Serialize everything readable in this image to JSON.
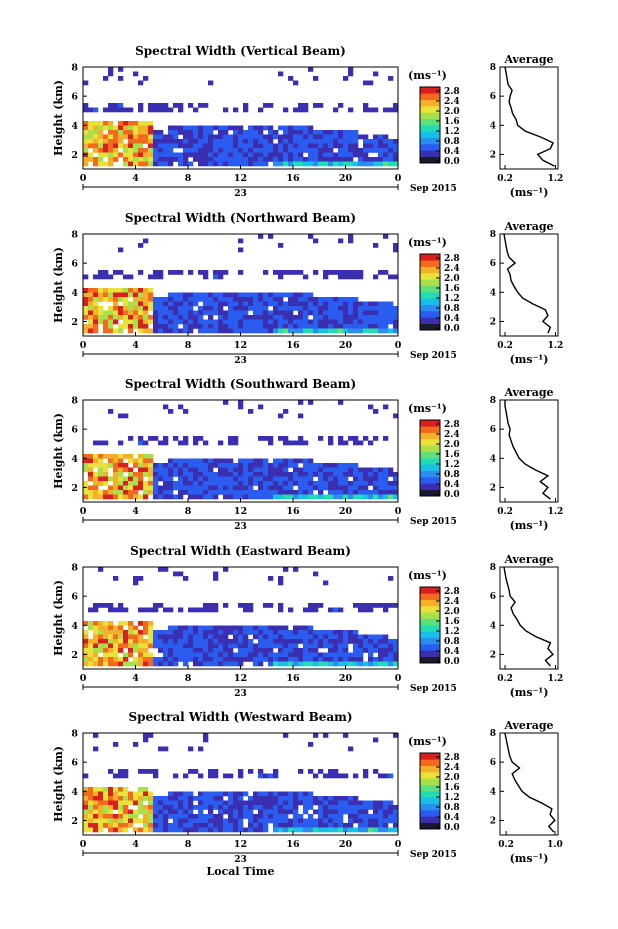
{
  "chart_data": [
    {
      "type": "heatmap",
      "title": "Spectral Width (Vertical Beam)",
      "ylabel": "Height (km)",
      "yticks": [
        "2",
        "4",
        "6",
        "8"
      ],
      "ylim": [
        1,
        8
      ],
      "xticks": [
        "0",
        "4",
        "8",
        "12",
        "16",
        "20",
        "0"
      ],
      "date_center": "23",
      "date_right": "Sep 2015",
      "colorbar": {
        "unit": "(ms⁻¹)",
        "ticks": [
          "2.8",
          "2.4",
          "2.0",
          "1.6",
          "1.2",
          "0.8",
          "0.4",
          "0.0"
        ]
      },
      "average_profile": {
        "title": "Average",
        "xlabel": "(ms⁻¹)",
        "xticks": [
          "0.2",
          "1.2"
        ],
        "xlim": [
          0.1,
          1.25
        ],
        "yticks": [
          "2",
          "4",
          "6",
          "8"
        ],
        "ylim": [
          1,
          8
        ],
        "height_km": [
          1.2,
          1.6,
          2.0,
          2.4,
          2.8,
          3.2,
          3.6,
          4.0,
          4.4,
          4.8,
          5.2,
          5.6,
          6.0,
          6.4,
          6.8,
          7.2,
          7.6,
          8.0
        ],
        "width": [
          1.18,
          0.95,
          0.85,
          1.1,
          1.15,
          0.9,
          0.6,
          0.45,
          0.42,
          0.35,
          0.32,
          0.28,
          0.3,
          0.34,
          0.26,
          0.24,
          0.22,
          0.2
        ]
      }
    },
    {
      "type": "heatmap",
      "title": "Spectral Width (Northward Beam)",
      "ylabel": "Height (km)",
      "yticks": [
        "2",
        "4",
        "6",
        "8"
      ],
      "ylim": [
        1,
        8
      ],
      "xticks": [
        "0",
        "4",
        "8",
        "12",
        "16",
        "20",
        "0"
      ],
      "date_center": "23",
      "date_right": "Sep 2015",
      "colorbar": {
        "unit": "(ms⁻¹)",
        "ticks": [
          "2.8",
          "2.4",
          "2.0",
          "1.6",
          "1.2",
          "0.8",
          "0.4",
          "0.0"
        ]
      },
      "average_profile": {
        "title": "Average",
        "xlabel": "(ms⁻¹)",
        "xticks": [
          "0.2",
          "1.2"
        ],
        "xlim": [
          0.1,
          1.25
        ],
        "yticks": [
          "2",
          "4",
          "6",
          "8"
        ],
        "ylim": [
          1,
          8
        ],
        "height_km": [
          1.2,
          1.6,
          2.0,
          2.4,
          2.8,
          3.2,
          3.6,
          4.0,
          4.4,
          4.8,
          5.2,
          5.6,
          6.0,
          6.4,
          6.8,
          7.2,
          7.6,
          8.0
        ],
        "width": [
          1.05,
          1.1,
          0.95,
          1.05,
          1.0,
          0.75,
          0.55,
          0.45,
          0.38,
          0.32,
          0.3,
          0.25,
          0.4,
          0.28,
          0.24,
          0.22,
          0.2,
          0.18
        ]
      }
    },
    {
      "type": "heatmap",
      "title": "Spectral Width (Southward Beam)",
      "ylabel": "Height (km)",
      "yticks": [
        "2",
        "4",
        "6",
        "8"
      ],
      "ylim": [
        1,
        8
      ],
      "xticks": [
        "0",
        "4",
        "8",
        "12",
        "16",
        "20",
        "0"
      ],
      "date_center": "23",
      "date_right": "Sep 2015",
      "colorbar": {
        "unit": "(ms⁻¹)",
        "ticks": [
          "2.8",
          "2.4",
          "2.0",
          "1.6",
          "1.2",
          "0.8",
          "0.4",
          "0.0"
        ]
      },
      "average_profile": {
        "title": "Average",
        "xlabel": "(ms⁻¹)",
        "xticks": [
          "0.2",
          "1.2"
        ],
        "xlim": [
          0.1,
          1.25
        ],
        "yticks": [
          "2",
          "4",
          "6",
          "8"
        ],
        "ylim": [
          1,
          8
        ],
        "height_km": [
          1.2,
          1.6,
          2.0,
          2.4,
          2.8,
          3.2,
          3.6,
          4.0,
          4.4,
          4.8,
          5.2,
          5.6,
          6.0,
          6.4,
          6.8,
          7.2,
          7.6,
          8.0
        ],
        "width": [
          1.1,
          0.95,
          1.05,
          0.9,
          1.05,
          0.8,
          0.6,
          0.48,
          0.42,
          0.36,
          0.32,
          0.28,
          0.3,
          0.26,
          0.24,
          0.22,
          0.2,
          0.2
        ]
      }
    },
    {
      "type": "heatmap",
      "title": "Spectral Width (Eastward Beam)",
      "ylabel": "Height (km)",
      "yticks": [
        "2",
        "4",
        "6",
        "8"
      ],
      "ylim": [
        1,
        8
      ],
      "xticks": [
        "0",
        "4",
        "8",
        "12",
        "16",
        "20",
        "0"
      ],
      "date_center": "23",
      "date_right": "Sep 2015",
      "colorbar": {
        "unit": "(ms⁻¹)",
        "ticks": [
          "2.8",
          "2.4",
          "2.0",
          "1.6",
          "1.2",
          "0.8",
          "0.4",
          "0.0"
        ]
      },
      "average_profile": {
        "title": "Average",
        "xlabel": "(ms⁻¹)",
        "xticks": [
          "0.2",
          "1.2"
        ],
        "xlim": [
          0.1,
          1.25
        ],
        "yticks": [
          "2",
          "4",
          "6",
          "8"
        ],
        "ylim": [
          1,
          8
        ],
        "height_km": [
          1.2,
          1.6,
          2.0,
          2.4,
          2.8,
          3.2,
          3.6,
          4.0,
          4.4,
          4.8,
          5.2,
          5.6,
          6.0,
          6.4,
          6.8,
          7.2,
          7.6,
          8.0
        ],
        "width": [
          1.1,
          1.0,
          1.15,
          1.05,
          1.1,
          0.82,
          0.62,
          0.5,
          0.44,
          0.36,
          0.32,
          0.4,
          0.3,
          0.28,
          0.25,
          0.22,
          0.2,
          0.18
        ]
      }
    },
    {
      "type": "heatmap",
      "title": "Spectral Width (Westward Beam)",
      "ylabel": "Height (km)",
      "yticks": [
        "2",
        "4",
        "6",
        "8"
      ],
      "ylim": [
        1,
        8
      ],
      "xticks": [
        "0",
        "4",
        "8",
        "12",
        "16",
        "20",
        "0"
      ],
      "date_center": "23",
      "date_right": "Sep 2015",
      "xlabel": "Local Time",
      "colorbar": {
        "unit": "(ms⁻¹)",
        "ticks": [
          "2.8",
          "2.4",
          "2.0",
          "1.6",
          "1.2",
          "0.8",
          "0.4",
          "0.0"
        ]
      },
      "average_profile": {
        "title": "Average",
        "xlabel": "(ms⁻¹)",
        "xticks": [
          "0.2",
          "1.0"
        ],
        "xlim": [
          0.1,
          1.05
        ],
        "yticks": [
          "2",
          "4",
          "6",
          "8"
        ],
        "ylim": [
          1,
          8
        ],
        "height_km": [
          1.2,
          1.6,
          2.0,
          2.4,
          2.8,
          3.2,
          3.6,
          4.0,
          4.4,
          4.8,
          5.2,
          5.6,
          6.0,
          6.4,
          6.8,
          7.2,
          7.6,
          8.0
        ],
        "width": [
          0.98,
          0.9,
          1.0,
          0.92,
          0.95,
          0.78,
          0.58,
          0.46,
          0.4,
          0.34,
          0.3,
          0.42,
          0.3,
          0.26,
          0.24,
          0.22,
          0.2,
          0.18
        ]
      }
    }
  ],
  "colors": {
    "colorbar": [
      "#1a1a2e",
      "#3a2fb0",
      "#2b5cf0",
      "#2a8df0",
      "#18c0e8",
      "#22dcb4",
      "#5ee07a",
      "#a8e04a",
      "#e8e23a",
      "#f5b02a",
      "#f26a1e",
      "#d92020"
    ]
  }
}
